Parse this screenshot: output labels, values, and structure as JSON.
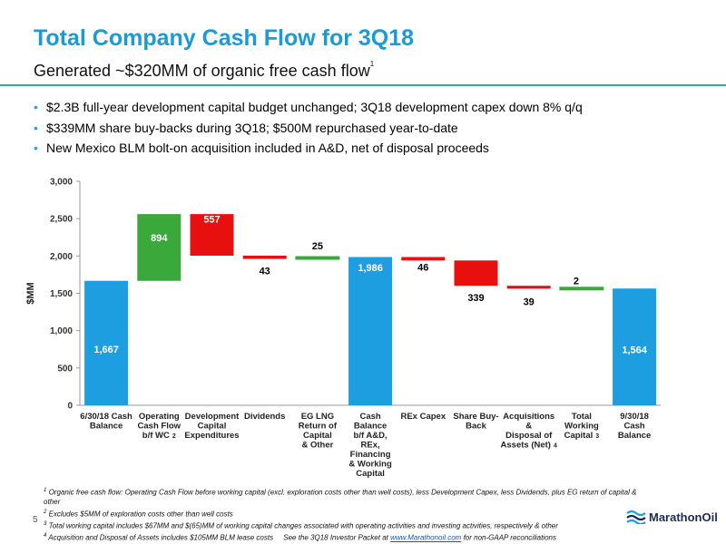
{
  "slide": {
    "title": "Total Company Cash Flow for 3Q18",
    "subtitle": "Generated ~$320MM of organic free cash flow",
    "subtitle_sup": "1",
    "bullets": [
      "$2.3B full-year development capital budget unchanged; 3Q18 development capex down 8% q/q",
      "$339MM share buy-backs during 3Q18; $500M repurchased year-to-date",
      "New Mexico BLM bolt-on acquisition included in A&D, net of disposal proceeds"
    ],
    "page_number": "5",
    "logo_text": "MarathonOil",
    "logo_icon": "wave-icon",
    "footnotes": {
      "f1_num": "1",
      "f1": "Organic free cash flow: Operating Cash Flow before working capital (excl. exploration costs other than well costs), less Development Capex, less Dividends, plus EG return of capital & other",
      "f2_num": "2",
      "f2": "Excludes $5MM of exploration costs other than well costs",
      "f3_num": "3",
      "f3": "Total working capital includes $67MM and $(65)MM of working capital changes associated with operating activities and investing activities, respectively & other",
      "f4_num": "4",
      "f4": "Acquisition and Disposal of Assets includes $105MM BLM lease costs",
      "f4_see": "See the 3Q18 Investor Packet at ",
      "f4_link": "www.Marathonoil.com",
      "f4_tail": " for non-GAAP reconciliations"
    }
  },
  "chart_data": {
    "type": "bar",
    "subtype": "waterfall",
    "ylabel": "$MM",
    "ylim": [
      0,
      3000
    ],
    "yticks": [
      0,
      500,
      1000,
      1500,
      2000,
      2500,
      3000
    ],
    "ytick_labels": [
      "0",
      "500",
      "1,000",
      "1,500",
      "2,000",
      "2,500",
      "3,000"
    ],
    "grid": false,
    "categories": [
      {
        "lines": [
          "6/30/18 Cash",
          "Balance"
        ],
        "sup": ""
      },
      {
        "lines": [
          "Operating",
          "Cash Flow",
          "b/f WC"
        ],
        "sup": "2"
      },
      {
        "lines": [
          "Development",
          "Capital",
          "Expenditures"
        ],
        "sup": ""
      },
      {
        "lines": [
          "Dividends"
        ],
        "sup": ""
      },
      {
        "lines": [
          "EG LNG",
          "Return of",
          "Capital",
          "& Other"
        ],
        "sup": ""
      },
      {
        "lines": [
          "Cash",
          "Balance",
          "b/f A&D,",
          "REx,",
          "Financing",
          "& Working",
          "Capital"
        ],
        "sup": ""
      },
      {
        "lines": [
          "REx Capex"
        ],
        "sup": ""
      },
      {
        "lines": [
          "Share Buy-",
          "Back"
        ],
        "sup": ""
      },
      {
        "lines": [
          "Acquisitions",
          "&",
          "Disposal of",
          "Assets (Net)"
        ],
        "sup": "4"
      },
      {
        "lines": [
          "Total",
          "Working",
          "Capital"
        ],
        "sup": "3"
      },
      {
        "lines": [
          "9/30/18",
          "Cash",
          "Balance"
        ],
        "sup": ""
      }
    ],
    "bars": [
      {
        "kind": "total",
        "start": 0,
        "end": 1667,
        "label": "1,667"
      },
      {
        "kind": "increase",
        "start": 1667,
        "end": 2561,
        "label": "894"
      },
      {
        "kind": "decrease",
        "start": 2561,
        "end": 2004,
        "label": "557"
      },
      {
        "kind": "decrease",
        "start": 2004,
        "end": 1961,
        "label": "43"
      },
      {
        "kind": "increase",
        "start": 1961,
        "end": 1986,
        "label": "25"
      },
      {
        "kind": "total",
        "start": 0,
        "end": 1986,
        "label": "1,986"
      },
      {
        "kind": "decrease",
        "start": 1986,
        "end": 1940,
        "label": "46"
      },
      {
        "kind": "decrease",
        "start": 1940,
        "end": 1601,
        "label": "339"
      },
      {
        "kind": "decrease",
        "start": 1601,
        "end": 1562,
        "label": "39"
      },
      {
        "kind": "increase",
        "start": 1562,
        "end": 1564,
        "label": "2"
      },
      {
        "kind": "total",
        "start": 0,
        "end": 1564,
        "label": "1,564"
      }
    ],
    "colors": {
      "total": "#1c9ee0",
      "increase": "#3aa83a",
      "decrease": "#e8100f"
    }
  }
}
